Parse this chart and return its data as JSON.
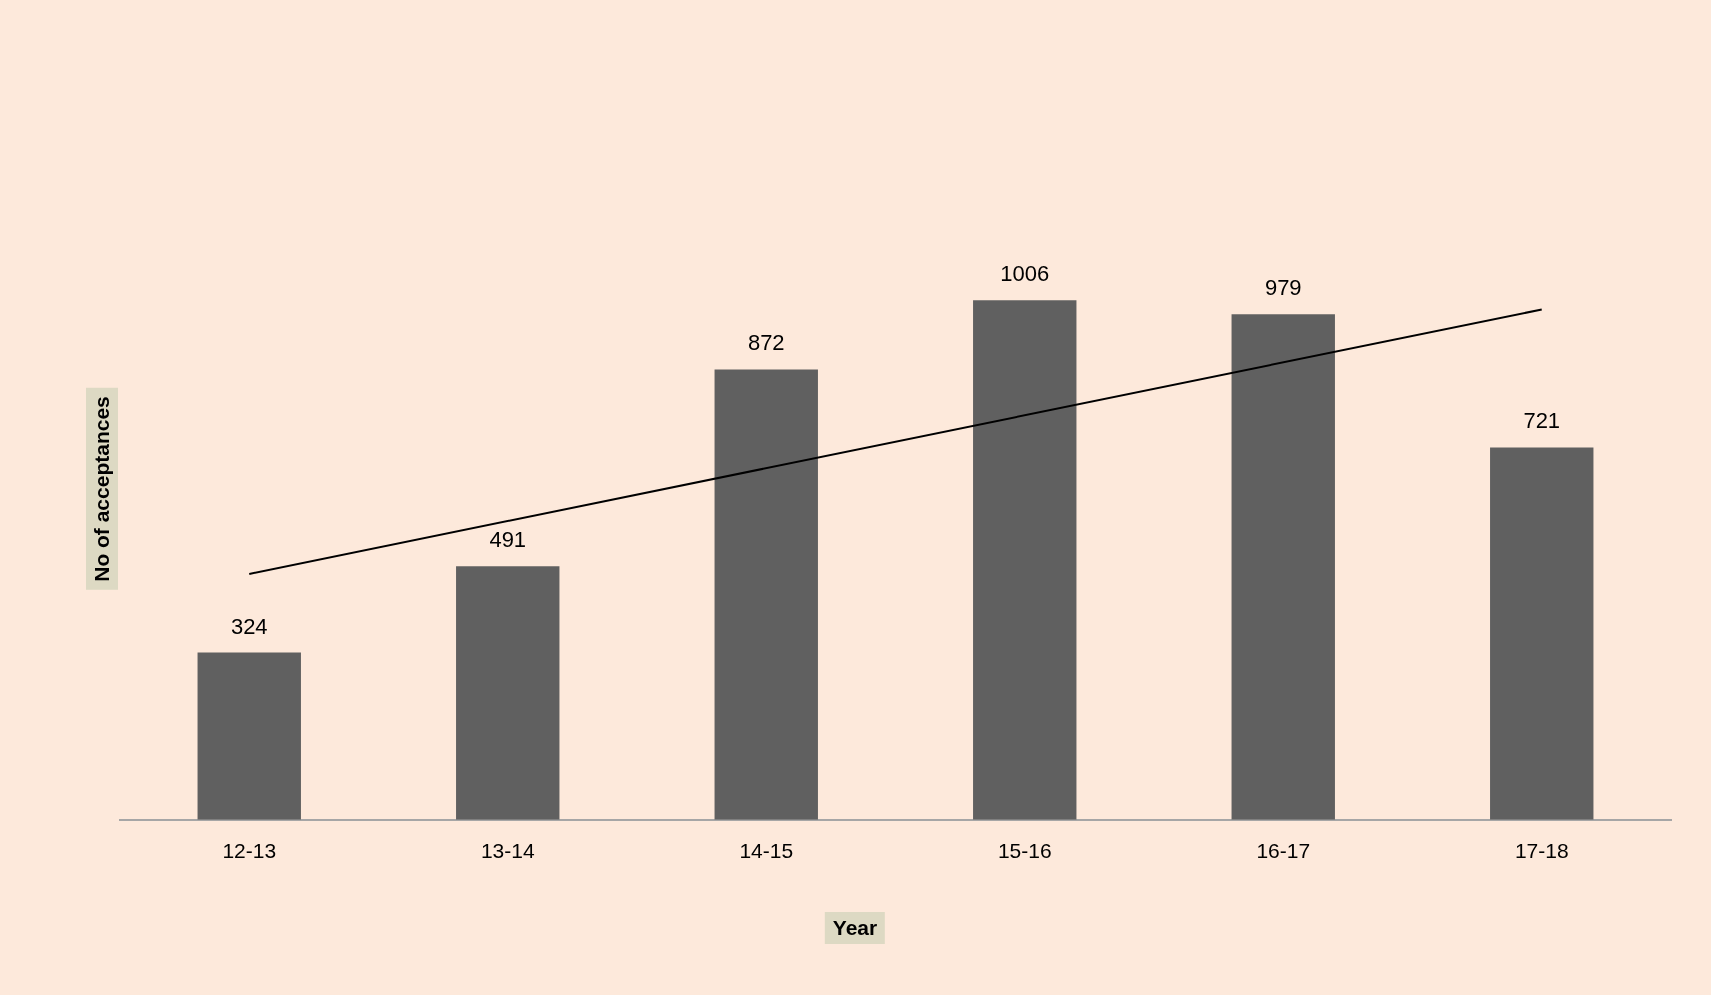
{
  "chart_data": {
    "type": "bar",
    "xlabel": "Year",
    "ylabel": "No of acceptances",
    "categories": [
      "12-13",
      "13-14",
      "14-15",
      "15-16",
      "16-17",
      "17-18"
    ],
    "series": [
      {
        "color": "#606060",
        "values": [
          324,
          491,
          872,
          1006,
          979,
          721
        ],
        "value_labels": [
          "324",
          "491",
          "872",
          "1006",
          "979",
          "721"
        ]
      },
      {
        "type": "line",
        "color": "#000000",
        "x": [
          "12-13",
          "17-18"
        ],
        "values": [
          476,
          988
        ]
      }
    ],
    "tick_labels": "x",
    "grid": false,
    "legend": false,
    "marker": "none",
    "line_style": "solid"
  }
}
